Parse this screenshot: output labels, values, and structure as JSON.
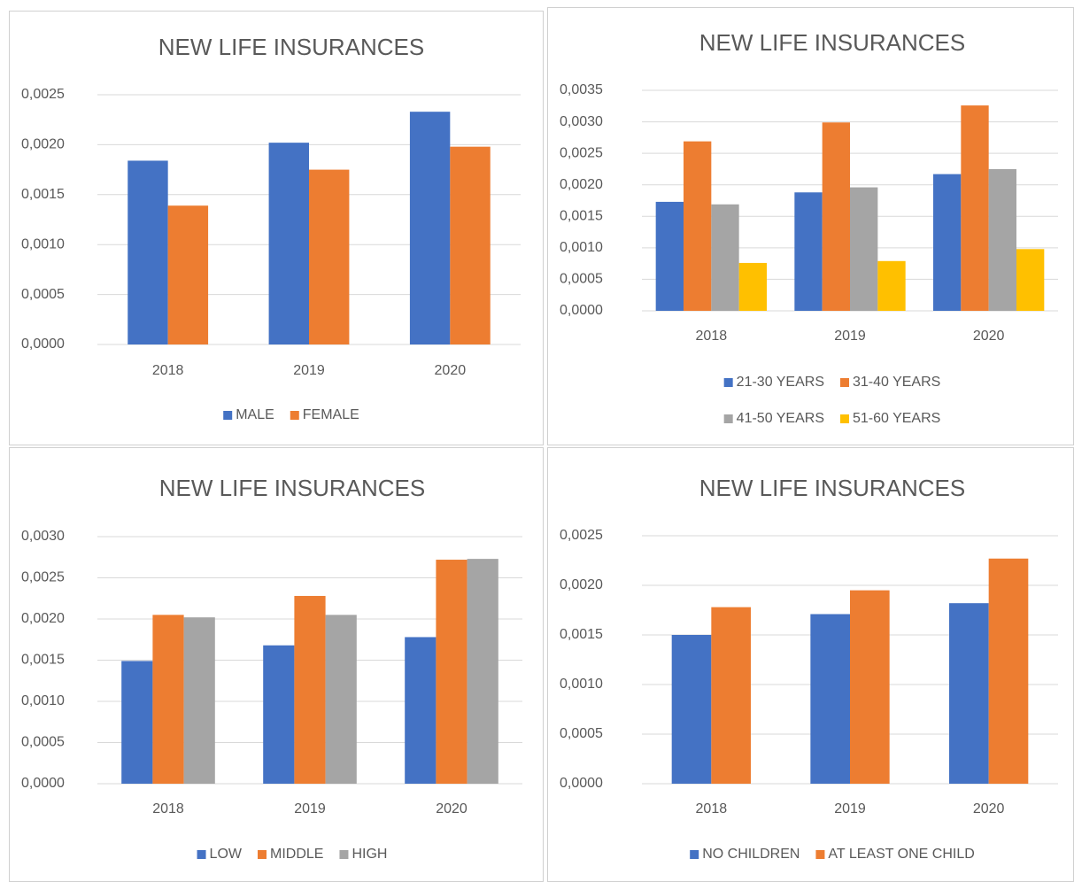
{
  "chart_data": [
    {
      "type": "bar",
      "title": "NEW LIFE INSURANCES",
      "categories": [
        "2018",
        "2019",
        "2020"
      ],
      "series": [
        {
          "name": "MALE",
          "color": "#4472c4",
          "values": [
            0.00184,
            0.00202,
            0.00233
          ]
        },
        {
          "name": "FEMALE",
          "color": "#ed7d31",
          "values": [
            0.00139,
            0.00175,
            0.00198
          ]
        }
      ],
      "ylim": [
        0,
        0.0025
      ],
      "yticks": [
        {
          "value": 0,
          "label": "0,0000"
        },
        {
          "value": 0.0005,
          "label": "0,0005"
        },
        {
          "value": 0.001,
          "label": "0,0010"
        },
        {
          "value": 0.0015,
          "label": "0,0015"
        },
        {
          "value": 0.002,
          "label": "0,0020"
        },
        {
          "value": 0.0025,
          "label": "0,0025"
        }
      ],
      "grid": true,
      "legend": "bottom"
    },
    {
      "type": "bar",
      "title": "NEW LIFE INSURANCES",
      "categories": [
        "2018",
        "2019",
        "2020"
      ],
      "series": [
        {
          "name": "21-30 YEARS",
          "color": "#4472c4",
          "values": [
            0.00173,
            0.00188,
            0.00217
          ]
        },
        {
          "name": "31-40 YEARS",
          "color": "#ed7d31",
          "values": [
            0.00269,
            0.00299,
            0.00326
          ]
        },
        {
          "name": "41-50 YEARS",
          "color": "#a5a5a5",
          "values": [
            0.00169,
            0.00196,
            0.00225
          ]
        },
        {
          "name": "51-60 YEARS",
          "color": "#ffc000",
          "values": [
            0.00076,
            0.00079,
            0.00098
          ]
        }
      ],
      "ylim": [
        0,
        0.0035
      ],
      "yticks": [
        {
          "value": 0,
          "label": "0,0000"
        },
        {
          "value": 0.0005,
          "label": "0,0005"
        },
        {
          "value": 0.001,
          "label": "0,0010"
        },
        {
          "value": 0.0015,
          "label": "0,0015"
        },
        {
          "value": 0.002,
          "label": "0,0020"
        },
        {
          "value": 0.0025,
          "label": "0,0025"
        },
        {
          "value": 0.003,
          "label": "0,0030"
        },
        {
          "value": 0.0035,
          "label": "0,0035"
        }
      ],
      "grid": true,
      "legend": "bottom"
    },
    {
      "type": "bar",
      "title": "NEW LIFE INSURANCES",
      "categories": [
        "2018",
        "2019",
        "2020"
      ],
      "series": [
        {
          "name": "LOW",
          "color": "#4472c4",
          "values": [
            0.00149,
            0.00168,
            0.00178
          ]
        },
        {
          "name": "MIDDLE",
          "color": "#ed7d31",
          "values": [
            0.00205,
            0.00228,
            0.00272
          ]
        },
        {
          "name": "HIGH",
          "color": "#a5a5a5",
          "values": [
            0.00202,
            0.00205,
            0.00273
          ]
        }
      ],
      "ylim": [
        0,
        0.003
      ],
      "yticks": [
        {
          "value": 0,
          "label": "0,0000"
        },
        {
          "value": 0.0005,
          "label": "0,0005"
        },
        {
          "value": 0.001,
          "label": "0,0010"
        },
        {
          "value": 0.0015,
          "label": "0,0015"
        },
        {
          "value": 0.002,
          "label": "0,0020"
        },
        {
          "value": 0.0025,
          "label": "0,0025"
        },
        {
          "value": 0.003,
          "label": "0,0030"
        }
      ],
      "grid": true,
      "legend": "bottom"
    },
    {
      "type": "bar",
      "title": "NEW LIFE INSURANCES",
      "categories": [
        "2018",
        "2019",
        "2020"
      ],
      "series": [
        {
          "name": "NO CHILDREN",
          "color": "#4472c4",
          "values": [
            0.0015,
            0.00171,
            0.00182
          ]
        },
        {
          "name": "AT LEAST ONE CHILD",
          "color": "#ed7d31",
          "values": [
            0.00178,
            0.00195,
            0.00227
          ]
        }
      ],
      "ylim": [
        0,
        0.0025
      ],
      "yticks": [
        {
          "value": 0,
          "label": "0,0000"
        },
        {
          "value": 0.0005,
          "label": "0,0005"
        },
        {
          "value": 0.001,
          "label": "0,0010"
        },
        {
          "value": 0.0015,
          "label": "0,0015"
        },
        {
          "value": 0.002,
          "label": "0,0020"
        },
        {
          "value": 0.0025,
          "label": "0,0025"
        }
      ],
      "grid": true,
      "legend": "bottom"
    }
  ]
}
